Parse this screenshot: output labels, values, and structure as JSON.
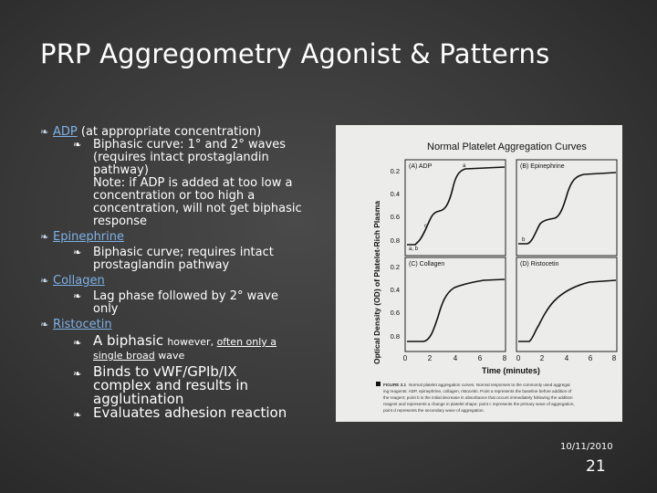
{
  "slide": {
    "title": "PRP Aggregometry Agonist & Patterns",
    "bullet_glyph": "❧",
    "items": [
      {
        "label": "ADP",
        "rest": " (at appropriate concentration)",
        "subs": [
          {
            "lines": [
              "Biphasic curve: 1° and 2° waves",
              "(requires intact prostaglandin",
              "pathway)",
              "Note: if ADP is added at too low a",
              "concentration or too high a",
              "concentration, will not get biphasic",
              "response"
            ]
          }
        ]
      },
      {
        "label": "Epinephrine",
        "subs": [
          {
            "lines": [
              "Biphasic curve; requires intact",
              "prostaglandin pathway"
            ]
          }
        ]
      },
      {
        "label": "Collagen",
        "subs": [
          {
            "lines": [
              "Lag phase followed by 2° wave",
              "only"
            ]
          }
        ]
      },
      {
        "label": "Ristocetin",
        "sub_a_big": "A biphasic",
        "sub_a_small1": "however, ",
        "sub_a_small_ul": "often only a",
        "sub_a_line2_ul": "single broad",
        "sub_a_line2": " wave",
        "subs_after": [
          {
            "lines": [
              "Binds to vWF/GPIb/IX",
              "complex and results in",
              "agglutination"
            ]
          },
          {
            "lines": [
              "Evaluates adhesion reaction"
            ]
          }
        ]
      }
    ],
    "footer_date": "10/11/2010",
    "page_number": "21"
  },
  "figure": {
    "title": "Normal Platelet Aggregation Curves",
    "ylabel": "Optical Density (OD) of Platelet-Rich Plasma",
    "xlabel": "Time (minutes)",
    "panels": [
      {
        "label": "(A) ADP",
        "yticks": [
          "0.2",
          "0.4",
          "0.6",
          "0.8"
        ]
      },
      {
        "label": "(B) Epinephrine"
      },
      {
        "label": "(C) Collagen",
        "yticks": [
          "0.2",
          "0.4",
          "0.6",
          "0.8"
        ]
      },
      {
        "label": "(D) Ristocetin"
      }
    ],
    "point_labels": {
      "a": "a",
      "b": "b",
      "c": "c",
      "ab": "a, b"
    },
    "xticks": [
      "0",
      "2",
      "4",
      "6",
      "8",
      "0",
      "2",
      "4",
      "6",
      "8"
    ],
    "caption_label": "FIGURE 3.1",
    "caption_lines": [
      "Normal platelet aggregation curves. Normal responses to the commonly used aggregat",
      "ing reagents: ADP, epinephrine, collagen, ristocetin. Point a represents the baseline before addition of",
      "the reagent; point b is the initial decrease in absorbance that occurs immediately following the addition",
      "reagent and represents a change in platelet shape; point c represents the primary wave of aggregation,",
      "point d represents the secondary wave of aggregation."
    ]
  }
}
